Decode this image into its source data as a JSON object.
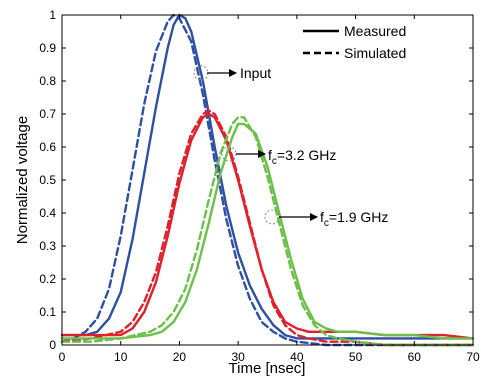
{
  "chart_data": {
    "type": "line",
    "xlabel": "Time [nsec]",
    "ylabel": "Normalized voltage",
    "xlim": [
      0,
      70
    ],
    "ylim": [
      0,
      1
    ],
    "xticks": [
      "0",
      "10",
      "20",
      "30",
      "40",
      "50",
      "60",
      "70"
    ],
    "yticks": [
      "0",
      "0.1",
      "0.2",
      "0.3",
      "0.4",
      "0.5",
      "0.6",
      "0.7",
      "0.8",
      "0.9",
      "1"
    ],
    "grid": false,
    "legend": {
      "position": "top-right",
      "entries": [
        {
          "label": "Measured",
          "style": "solid"
        },
        {
          "label": "Simulated",
          "style": "dashed"
        }
      ]
    },
    "colors": {
      "input": "#2e4fa3",
      "fc32": "#e0202a",
      "fc19": "#6cc04a"
    },
    "series": [
      {
        "group": "input",
        "style": "solid",
        "x": [
          0,
          4,
          6,
          8,
          10,
          12,
          14,
          16,
          18,
          19,
          20,
          21,
          22,
          24,
          26,
          28,
          30,
          32,
          34,
          36,
          38,
          40,
          42,
          45,
          50,
          55,
          60,
          65,
          70
        ],
        "y": [
          0.03,
          0.03,
          0.04,
          0.08,
          0.16,
          0.32,
          0.52,
          0.72,
          0.9,
          0.97,
          1.0,
          0.99,
          0.95,
          0.8,
          0.6,
          0.42,
          0.28,
          0.18,
          0.11,
          0.06,
          0.03,
          0.02,
          0.02,
          0.02,
          0.02,
          0.02,
          0.02,
          0.02,
          0.02
        ]
      },
      {
        "group": "input",
        "style": "dashed",
        "x": [
          0,
          2,
          4,
          6,
          8,
          10,
          12,
          14,
          16,
          18,
          19,
          20,
          22,
          24,
          26,
          28,
          30,
          32,
          34,
          36,
          38,
          40,
          45,
          50,
          55,
          60,
          65,
          70
        ],
        "y": [
          0.01,
          0.02,
          0.04,
          0.08,
          0.17,
          0.33,
          0.53,
          0.73,
          0.89,
          0.98,
          1.0,
          0.99,
          0.92,
          0.76,
          0.56,
          0.38,
          0.24,
          0.14,
          0.07,
          0.04,
          0.02,
          0.01,
          0.0,
          0.0,
          0.0,
          0.0,
          0.0,
          0.0
        ]
      },
      {
        "group": "fc32",
        "style": "solid",
        "x": [
          0,
          5,
          10,
          12,
          14,
          16,
          18,
          20,
          22,
          24,
          25,
          26,
          28,
          30,
          32,
          34,
          36,
          38,
          40,
          42,
          45,
          50,
          55,
          60,
          65,
          70
        ],
        "y": [
          0.03,
          0.03,
          0.03,
          0.05,
          0.1,
          0.19,
          0.33,
          0.49,
          0.62,
          0.69,
          0.7,
          0.69,
          0.62,
          0.5,
          0.36,
          0.23,
          0.13,
          0.07,
          0.05,
          0.04,
          0.04,
          0.04,
          0.03,
          0.03,
          0.03,
          0.02
        ]
      },
      {
        "group": "fc32",
        "style": "dashed",
        "x": [
          0,
          5,
          10,
          12,
          14,
          16,
          18,
          20,
          22,
          24,
          25,
          26,
          28,
          30,
          32,
          34,
          36,
          38,
          40,
          42,
          45,
          50,
          55,
          60,
          65,
          70
        ],
        "y": [
          0.01,
          0.02,
          0.04,
          0.07,
          0.13,
          0.22,
          0.36,
          0.52,
          0.64,
          0.7,
          0.71,
          0.7,
          0.63,
          0.51,
          0.37,
          0.23,
          0.12,
          0.06,
          0.03,
          0.02,
          0.01,
          0.01,
          0.0,
          0.0,
          0.0,
          0.0
        ]
      },
      {
        "group": "fc19",
        "style": "solid",
        "x": [
          0,
          5,
          10,
          15,
          17,
          19,
          21,
          23,
          25,
          27,
          29,
          30,
          31,
          33,
          35,
          37,
          39,
          41,
          43,
          45,
          47,
          50,
          55,
          60,
          65,
          70
        ],
        "y": [
          0.02,
          0.02,
          0.02,
          0.03,
          0.04,
          0.07,
          0.13,
          0.23,
          0.37,
          0.52,
          0.63,
          0.67,
          0.67,
          0.64,
          0.54,
          0.4,
          0.26,
          0.14,
          0.07,
          0.05,
          0.04,
          0.04,
          0.03,
          0.03,
          0.02,
          0.02
        ]
      },
      {
        "group": "fc19",
        "style": "dashed",
        "x": [
          0,
          5,
          10,
          15,
          17,
          19,
          21,
          23,
          25,
          27,
          29,
          30,
          31,
          33,
          35,
          37,
          39,
          41,
          43,
          45,
          47,
          50,
          55,
          60,
          65,
          70
        ],
        "y": [
          0.01,
          0.01,
          0.02,
          0.04,
          0.06,
          0.1,
          0.17,
          0.29,
          0.44,
          0.58,
          0.67,
          0.69,
          0.69,
          0.63,
          0.51,
          0.37,
          0.23,
          0.12,
          0.06,
          0.03,
          0.02,
          0.01,
          0.0,
          0.0,
          0.0,
          0.0
        ]
      }
    ],
    "annotations": [
      {
        "id": "input",
        "label": "Input",
        "x": 23.5,
        "y": 0.82
      },
      {
        "id": "fc32",
        "label_main": "f",
        "label_sub": "c",
        "label_rest": "=3.2 GHz",
        "x": 28.5,
        "y": 0.58
      },
      {
        "id": "fc19",
        "label_main": "f",
        "label_sub": "c",
        "label_rest": "=1.9 GHz",
        "x": 36.5,
        "y": 0.39
      }
    ]
  }
}
